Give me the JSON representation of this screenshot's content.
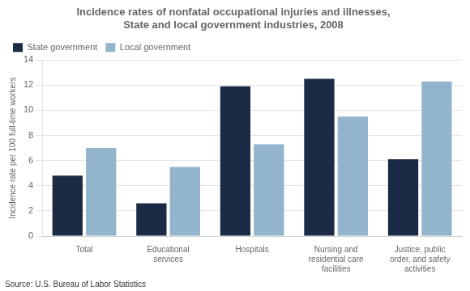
{
  "chart_data": {
    "type": "bar",
    "title": "Incidence rates of nonfatal occupational injuries and illnesses,\nState and local government industries, 2008",
    "categories": [
      "Total",
      "Educational\nservices",
      "Hospitals",
      "Nursing and\nresidential care\nfacilities",
      "Justice, public\norder, and safety\nactivities"
    ],
    "series": [
      {
        "name": "State government",
        "color": "#1c2b45",
        "values": [
          4.8,
          2.6,
          11.9,
          12.5,
          6.1
        ]
      },
      {
        "name": "Local government",
        "color": "#92b4cc",
        "values": [
          7.0,
          5.5,
          7.3,
          9.5,
          12.3
        ]
      }
    ],
    "ylabel": "Incidence rate per 100 full-time workers",
    "ylim": [
      0,
      14
    ],
    "yticks": [
      0,
      2,
      4,
      6,
      8,
      10,
      12,
      14
    ],
    "grid": true,
    "legend": "upper left",
    "source": "Source: U.S. Bureau of Labor Statistics"
  }
}
